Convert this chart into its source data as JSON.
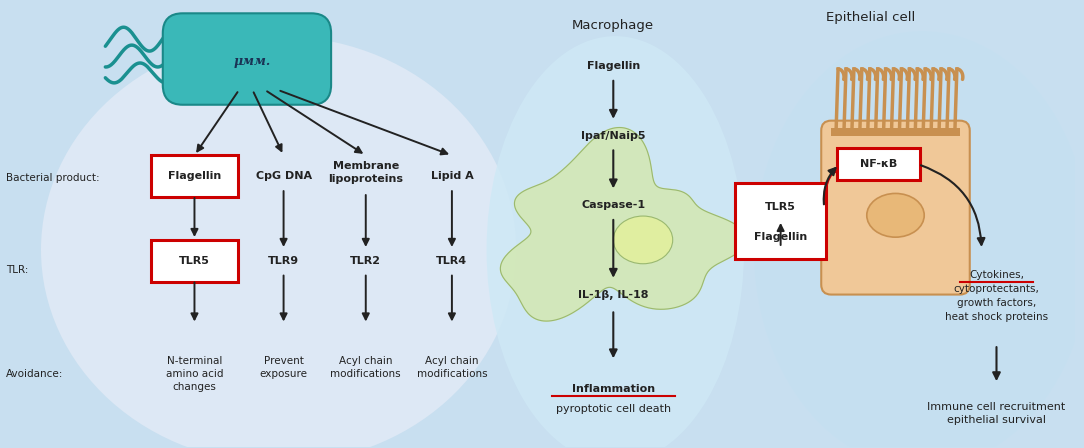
{
  "fig_width": 10.84,
  "fig_height": 4.48,
  "bg_color": "#c8dff0",
  "left_panel_bg": "#dce8f5",
  "macro_panel_bg": "#c5dff0",
  "epi_panel_bg": "#c8e0f0",
  "bacterium_fill": "#3ab8b8",
  "bacterium_edge": "#1a8888",
  "flagella_color": "#1a9090",
  "macrophage_fill": "#d4e8a8",
  "macrophage_edge": "#9ab870",
  "epithelial_fill": "#f0c898",
  "epithelial_edge": "#c89050",
  "nucleus_fill": "#e8b878",
  "nucleus_edge": "#c89050",
  "cilia_color": "#c89050",
  "red_color": "#cc0000",
  "arrow_color": "#222222",
  "text_color": "#222222",
  "white": "#ffffff",
  "label_bacterial": "Bacterial product:",
  "label_tlr": "TLR:",
  "label_avoidance": "Avoidance:",
  "col1_product": "Flagellin",
  "col1_tlr": "TLR5",
  "col1_avoidance": "N-terminal\namino acid\nchanges",
  "col2_product": "CpG DNA",
  "col2_tlr": "TLR9",
  "col2_avoidance": "Prevent\nexposure",
  "col3_product": "Membrane\nlipoproteins",
  "col3_tlr": "TLR2",
  "col3_avoidance": "Acyl chain\nmodifications",
  "col4_product": "Lipid A",
  "col4_tlr": "TLR4",
  "macro_title": "Macrophage",
  "macro_flagellin": "Flagellin",
  "macro_ipaf": "Ipaf/Naip5",
  "macro_caspase": "Caspase-1",
  "macro_il": "IL-1β, IL-18",
  "macro_outcome1": "Inflammation",
  "macro_outcome2": "pyroptotic cell death",
  "epi_title": "Epithelial cell",
  "epi_nfkb": "NF-κB",
  "epi_tlr5": "TLR5",
  "epi_flagellin": "Flagellin",
  "epi_cytokines": "Cytokines,\ncytoprotectants,\ngrowth factors,\nheat shock proteins",
  "epi_outcome": "Immune cell recruitment\nepithelial survival"
}
